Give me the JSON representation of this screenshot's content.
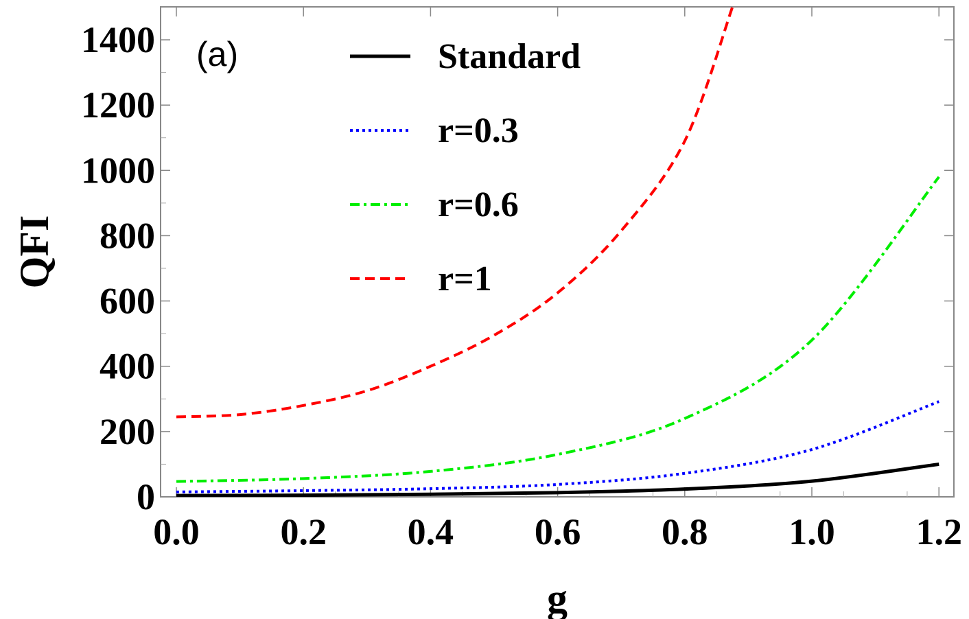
{
  "chart_data": {
    "type": "line",
    "panel_label": "(a)",
    "xlabel": "g",
    "ylabel": "QFI",
    "xlim": [
      0,
      1.25
    ],
    "ylim": [
      0,
      1500
    ],
    "xticks": [
      "0.0",
      "0.2",
      "0.4",
      "0.6",
      "0.8",
      "1.0",
      "1.2"
    ],
    "yticks": [
      "0",
      "200",
      "400",
      "600",
      "800",
      "1000",
      "1200",
      "1400"
    ],
    "legend_position": "top-left",
    "grid": false,
    "series": [
      {
        "name": "Standard",
        "color": "#000000",
        "style": "solid",
        "x": [
          0,
          0.2,
          0.4,
          0.6,
          0.8,
          1.0,
          1.2
        ],
        "y": [
          4,
          5,
          8,
          13,
          24,
          48,
          100
        ]
      },
      {
        "name": "r=0.3",
        "color": "#0000ff",
        "style": "dotted",
        "x": [
          0,
          0.2,
          0.4,
          0.6,
          0.8,
          1.0,
          1.2
        ],
        "y": [
          15,
          19,
          25,
          38,
          72,
          145,
          292
        ]
      },
      {
        "name": "r=0.6",
        "color": "#00ee00",
        "style": "dashdot",
        "x": [
          0,
          0.2,
          0.4,
          0.6,
          0.8,
          1.0,
          1.2
        ],
        "y": [
          47,
          56,
          78,
          130,
          240,
          480,
          980
        ]
      },
      {
        "name": "r=1",
        "color": "#ff0000",
        "style": "dashed",
        "x": [
          0,
          0.1,
          0.2,
          0.3,
          0.4,
          0.5,
          0.6,
          0.7,
          0.8,
          0.875
        ],
        "y": [
          245,
          252,
          280,
          325,
          400,
          495,
          625,
          815,
          1090,
          1500
        ]
      }
    ]
  }
}
